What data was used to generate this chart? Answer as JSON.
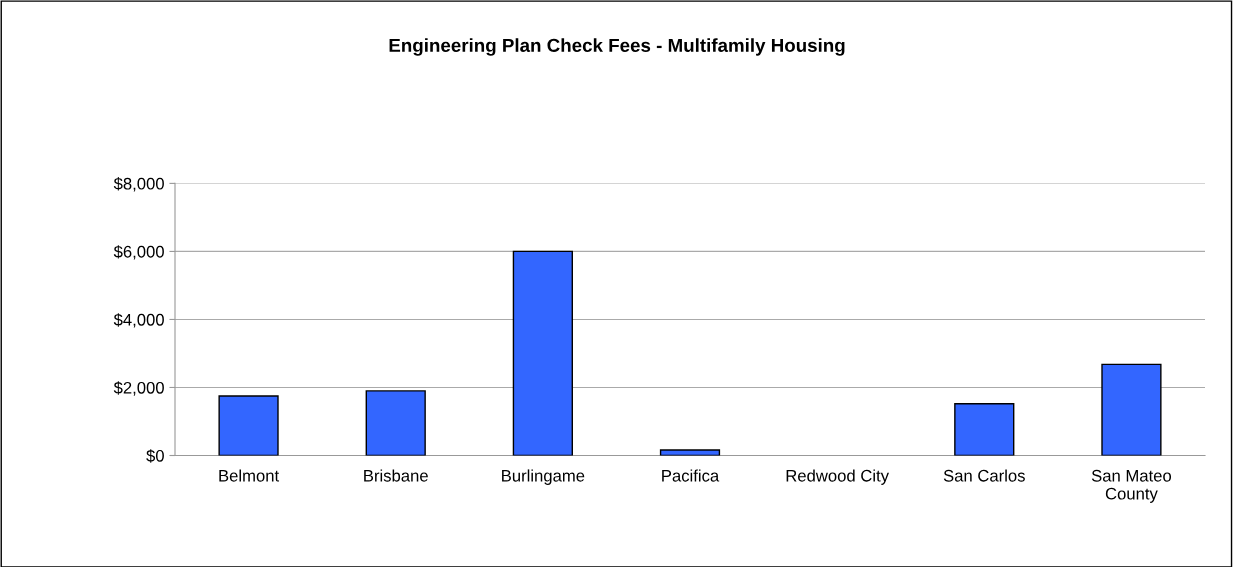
{
  "chart_data": {
    "type": "bar",
    "title": "Engineering Plan Check Fees - Multifamily Housing",
    "categories": [
      "Belmont",
      "Brisbane",
      "Burlingame",
      "Pacifica",
      "Redwood City",
      "San Carlos",
      "San Mateo County"
    ],
    "values": [
      1750,
      1900,
      6000,
      160,
      null,
      1520,
      2680
    ],
    "color": "#3366ff",
    "ylim": [
      0,
      8000
    ],
    "yticks": [
      {
        "value": 0,
        "label": "$0"
      },
      {
        "value": 2000,
        "label": "$2,000"
      },
      {
        "value": 4000,
        "label": "$4,000"
      },
      {
        "value": 6000,
        "label": "$6,000"
      },
      {
        "value": 8000,
        "label": "$8,000"
      }
    ],
    "grid": "y"
  }
}
